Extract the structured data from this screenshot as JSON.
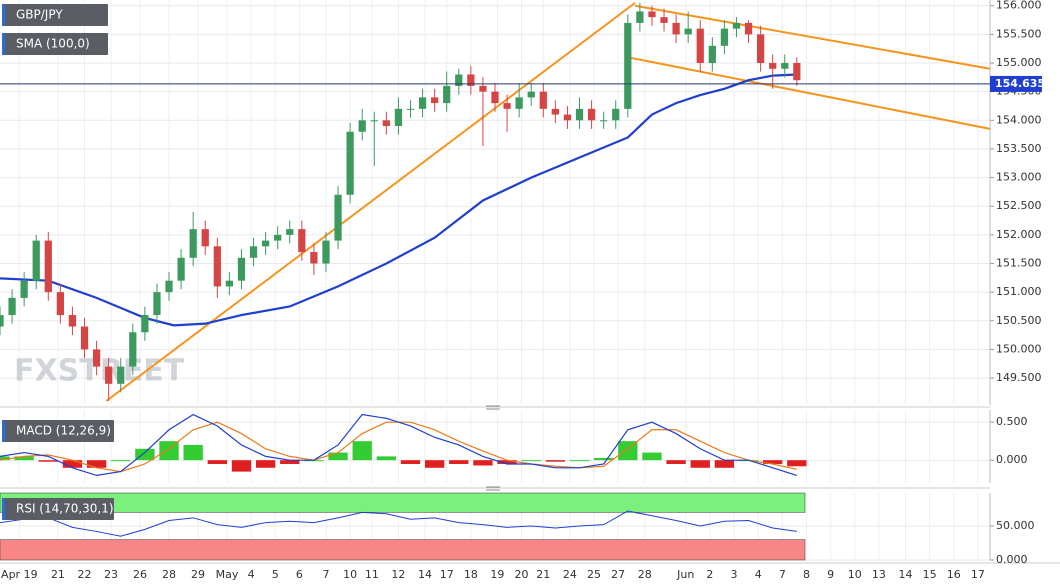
{
  "chart_data": [
    {
      "type": "candlestick",
      "title": "GBP/JPY",
      "watermark": "FXSTREET",
      "xlim": [
        0,
        41
      ],
      "ylim": [
        149.03,
        156.1
      ],
      "xticks": [
        {
          "value": 0.8,
          "label": "Apr 19"
        },
        {
          "value": 2.4,
          "label": "21"
        },
        {
          "value": 3.5,
          "label": "22"
        },
        {
          "value": 4.6,
          "label": "23"
        },
        {
          "value": 5.8,
          "label": "26"
        },
        {
          "value": 7.0,
          "label": "28"
        },
        {
          "value": 8.2,
          "label": "29"
        },
        {
          "value": 9.4,
          "label": "May"
        },
        {
          "value": 10.4,
          "label": "4"
        },
        {
          "value": 11.4,
          "label": "5"
        },
        {
          "value": 12.4,
          "label": "6"
        },
        {
          "value": 13.5,
          "label": "7"
        },
        {
          "value": 14.5,
          "label": "10"
        },
        {
          "value": 15.4,
          "label": "11"
        },
        {
          "value": 16.5,
          "label": "12"
        },
        {
          "value": 17.6,
          "label": "14"
        },
        {
          "value": 18.5,
          "label": "17"
        },
        {
          "value": 19.5,
          "label": "18"
        },
        {
          "value": 20.6,
          "label": "19"
        },
        {
          "value": 21.6,
          "label": "20"
        },
        {
          "value": 22.5,
          "label": "21"
        },
        {
          "value": 23.6,
          "label": "24"
        },
        {
          "value": 24.6,
          "label": "25"
        },
        {
          "value": 25.6,
          "label": "27"
        },
        {
          "value": 26.7,
          "label": "28"
        },
        {
          "value": 28.4,
          "label": "Jun"
        },
        {
          "value": 29.4,
          "label": "2"
        },
        {
          "value": 30.4,
          "label": "3"
        },
        {
          "value": 31.4,
          "label": "4"
        },
        {
          "value": 32.4,
          "label": "7"
        },
        {
          "value": 33.4,
          "label": "8"
        },
        {
          "value": 34.4,
          "label": "9"
        },
        {
          "value": 35.4,
          "label": "10"
        },
        {
          "value": 36.4,
          "label": "13"
        },
        {
          "value": 37.5,
          "label": "14"
        },
        {
          "value": 38.5,
          "label": "15"
        },
        {
          "value": 39.5,
          "label": "16"
        },
        {
          "value": 40.5,
          "label": "17"
        }
      ],
      "yticks": [
        {
          "value": 149.5,
          "label": "149.500"
        },
        {
          "value": 150,
          "label": "150.000"
        },
        {
          "value": 150.5,
          "label": "150.500"
        },
        {
          "value": 151,
          "label": "151.000"
        },
        {
          "value": 151.5,
          "label": "151.500"
        },
        {
          "value": 152,
          "label": "152.000"
        },
        {
          "value": 152.5,
          "label": "152.500"
        },
        {
          "value": 153,
          "label": "153.000"
        },
        {
          "value": 153.5,
          "label": "153.500"
        },
        {
          "value": 154,
          "label": "154.000"
        },
        {
          "value": 154.5,
          "label": "154.500"
        },
        {
          "value": 155,
          "label": "155.000"
        },
        {
          "value": 155.5,
          "label": "155.500"
        },
        {
          "value": 156,
          "label": "156.000"
        }
      ],
      "up_color": "#3c9a5f",
      "down_color": "#d64545",
      "x": [
        0,
        0.5,
        1,
        1.5,
        2,
        2.5,
        3,
        3.5,
        4,
        4.5,
        5,
        5.5,
        6,
        6.5,
        7,
        7.5,
        8,
        8.5,
        9,
        9.5,
        10,
        10.5,
        11,
        11.5,
        12,
        12.5,
        13,
        13.5,
        14,
        14.5,
        15,
        15.5,
        16,
        16.5,
        17,
        17.5,
        18,
        18.5,
        19,
        19.5,
        20,
        20.5,
        21,
        21.5,
        22,
        22.5,
        23,
        23.5,
        24,
        24.5,
        25,
        25.5,
        26,
        26.5,
        27,
        27.5,
        28,
        28.5,
        29,
        29.5,
        30,
        30.5,
        31,
        31.5,
        32,
        32.5,
        33
      ],
      "open": [
        150.4,
        150.6,
        150.9,
        151.2,
        151.9,
        151.0,
        150.6,
        150.4,
        150.0,
        149.7,
        149.4,
        149.7,
        150.3,
        150.6,
        151.0,
        151.2,
        151.6,
        152.1,
        151.8,
        151.1,
        151.2,
        151.6,
        151.8,
        151.9,
        152.0,
        152.1,
        151.7,
        151.5,
        151.9,
        152.7,
        153.8,
        154.0,
        154.0,
        153.9,
        154.2,
        154.2,
        154.4,
        154.3,
        154.6,
        154.8,
        154.6,
        154.5,
        154.3,
        154.2,
        154.4,
        154.5,
        154.2,
        154.1,
        154.0,
        154.2,
        154.0,
        154.0,
        154.2,
        155.7,
        155.9,
        155.8,
        155.7,
        155.5,
        155.6,
        155.0,
        155.3,
        155.6,
        155.7,
        155.5,
        155.0,
        154.9,
        155.0
      ],
      "high": [
        150.75,
        151.05,
        151.35,
        152.0,
        152.05,
        151.15,
        150.75,
        150.55,
        150.15,
        149.85,
        149.85,
        150.45,
        150.75,
        151.15,
        151.35,
        151.75,
        152.4,
        152.25,
        151.95,
        151.35,
        151.75,
        151.95,
        152.05,
        152.15,
        152.25,
        152.25,
        151.85,
        152.05,
        152.85,
        153.95,
        154.2,
        154.15,
        154.15,
        154.4,
        154.35,
        154.55,
        154.55,
        154.85,
        154.9,
        154.95,
        154.75,
        154.65,
        154.45,
        154.65,
        154.65,
        154.65,
        154.35,
        154.25,
        154.4,
        154.35,
        154.15,
        154.35,
        155.85,
        156.05,
        156.0,
        155.95,
        155.85,
        155.9,
        155.75,
        155.45,
        155.75,
        155.8,
        155.75,
        155.65,
        155.15,
        155.15,
        155.1
      ],
      "low": [
        150.25,
        150.45,
        150.75,
        151.05,
        150.85,
        150.45,
        150.25,
        149.85,
        149.55,
        149.1,
        149.25,
        149.55,
        150.15,
        150.45,
        150.85,
        151.05,
        151.45,
        151.65,
        150.9,
        150.95,
        151.05,
        151.45,
        151.65,
        151.75,
        151.85,
        151.55,
        151.3,
        151.35,
        151.75,
        152.55,
        153.65,
        153.2,
        153.75,
        153.75,
        154.05,
        154.05,
        154.15,
        154.15,
        154.45,
        154.45,
        153.55,
        154.15,
        153.8,
        154.05,
        154.25,
        154.05,
        153.95,
        153.85,
        153.85,
        153.85,
        153.85,
        153.85,
        154.05,
        155.55,
        155.65,
        155.55,
        155.35,
        155.35,
        154.85,
        154.85,
        155.15,
        155.45,
        155.35,
        154.85,
        154.55,
        154.75,
        154.6
      ],
      "close": [
        150.6,
        150.9,
        151.2,
        151.9,
        151.0,
        150.6,
        150.4,
        150.0,
        149.7,
        149.4,
        149.7,
        150.3,
        150.6,
        151.0,
        151.2,
        151.6,
        152.1,
        151.8,
        151.1,
        151.2,
        151.6,
        151.8,
        151.9,
        152.0,
        152.1,
        151.7,
        151.5,
        151.9,
        152.7,
        153.8,
        154.0,
        154.0,
        153.9,
        154.2,
        154.2,
        154.4,
        154.3,
        154.6,
        154.8,
        154.6,
        154.5,
        154.3,
        154.2,
        154.4,
        154.5,
        154.2,
        154.1,
        154.0,
        154.2,
        154.0,
        154.0,
        154.2,
        155.7,
        155.9,
        155.8,
        155.7,
        155.5,
        155.6,
        155.0,
        155.3,
        155.6,
        155.7,
        155.5,
        155.0,
        154.9,
        155.0,
        154.7
      ],
      "sma": {
        "name": "SMA (100,0)",
        "color": "#1f3fd0",
        "x": [
          0,
          2,
          4,
          6,
          7.2,
          8.5,
          10,
          12,
          14,
          16,
          18,
          20,
          22,
          24,
          26,
          27,
          28,
          29,
          30,
          31,
          32,
          33
        ],
        "values": [
          151.24,
          151.2,
          150.9,
          150.55,
          150.42,
          150.45,
          150.6,
          150.75,
          151.1,
          151.5,
          151.95,
          152.6,
          153.0,
          153.35,
          153.7,
          154.1,
          154.3,
          154.44,
          154.55,
          154.7,
          154.78,
          154.8
        ]
      },
      "trendline_color": "#f7941d",
      "trendlines": [
        {
          "x": [
            4.4,
            26.3
          ],
          "y": [
            149.1,
            156.05
          ]
        },
        {
          "x": [
            26.3,
            41
          ],
          "y": [
            156.0,
            154.9
          ]
        },
        {
          "x": [
            26.0,
            41
          ],
          "y": [
            155.1,
            153.85
          ]
        }
      ],
      "last_price": 154.635,
      "last_color": "#1f3fd0"
    },
    {
      "type": "macd",
      "title": "MACD (12,26,9)",
      "xlim": [
        0,
        41
      ],
      "ylim": [
        -0.3,
        0.66
      ],
      "yticks": [
        {
          "value": 0,
          "label": "0.000"
        },
        {
          "value": 0.5,
          "label": "0.500"
        }
      ],
      "x": [
        0,
        1,
        2,
        3,
        4,
        5,
        6,
        7,
        8,
        9,
        10,
        11,
        12,
        13,
        14,
        15,
        16,
        17,
        18,
        19,
        20,
        21,
        22,
        23,
        24,
        25,
        26,
        27,
        28,
        29,
        30,
        31,
        32,
        33
      ],
      "macd": [
        0.05,
        0.1,
        0.05,
        -0.1,
        -0.2,
        -0.15,
        0.1,
        0.4,
        0.6,
        0.45,
        0.2,
        0.05,
        0.0,
        0.0,
        0.2,
        0.6,
        0.55,
        0.45,
        0.3,
        0.2,
        0.05,
        -0.05,
        -0.05,
        -0.1,
        -0.1,
        -0.05,
        0.4,
        0.5,
        0.35,
        0.15,
        0.0,
        0.0,
        -0.1,
        -0.2
      ],
      "signal": [
        0.0,
        0.05,
        0.07,
        0.0,
        -0.1,
        -0.15,
        -0.05,
        0.15,
        0.4,
        0.5,
        0.35,
        0.15,
        0.05,
        0.0,
        0.1,
        0.35,
        0.5,
        0.5,
        0.4,
        0.25,
        0.12,
        0.0,
        -0.05,
        -0.08,
        -0.1,
        -0.08,
        0.15,
        0.4,
        0.4,
        0.25,
        0.1,
        0.0,
        -0.05,
        -0.12
      ],
      "histogram": [
        0.05,
        0.05,
        -0.02,
        -0.1,
        -0.1,
        0.0,
        0.15,
        0.25,
        0.2,
        -0.05,
        -0.15,
        -0.1,
        -0.05,
        0.0,
        0.1,
        0.25,
        0.05,
        -0.05,
        -0.1,
        -0.05,
        -0.07,
        -0.05,
        0.0,
        -0.02,
        0.0,
        0.03,
        0.25,
        0.1,
        -0.05,
        -0.1,
        -0.1,
        0.0,
        -0.05,
        -0.08
      ],
      "macd_color": "#1f3fd0",
      "signal_color": "#f07a1a",
      "up_color": "#33cc33",
      "down_color": "#e02020"
    },
    {
      "type": "rsi",
      "title": "RSI (14,70,30,1)",
      "xlim": [
        0,
        41
      ],
      "ylim": [
        0,
        98.5
      ],
      "yticks": [
        {
          "value": 0,
          "label": "0.000"
        },
        {
          "value": 50,
          "label": "50.000"
        }
      ],
      "overbought": 70,
      "oversold": 30,
      "overbought_color": "#7cf07c",
      "oversold_color": "#f88686",
      "x": [
        0,
        1,
        2,
        3,
        4,
        5,
        6,
        7,
        8,
        9,
        10,
        11,
        12,
        13,
        14,
        15,
        16,
        17,
        18,
        19,
        20,
        21,
        22,
        23,
        24,
        25,
        26,
        27,
        28,
        29,
        30,
        31,
        32,
        33
      ],
      "values": [
        55,
        60,
        62,
        48,
        42,
        35,
        45,
        58,
        62,
        52,
        48,
        55,
        57,
        55,
        62,
        70,
        68,
        60,
        62,
        55,
        52,
        48,
        50,
        47,
        50,
        52,
        72,
        65,
        58,
        50,
        57,
        58,
        47,
        42
      ],
      "color": "#1f3fd0"
    }
  ]
}
